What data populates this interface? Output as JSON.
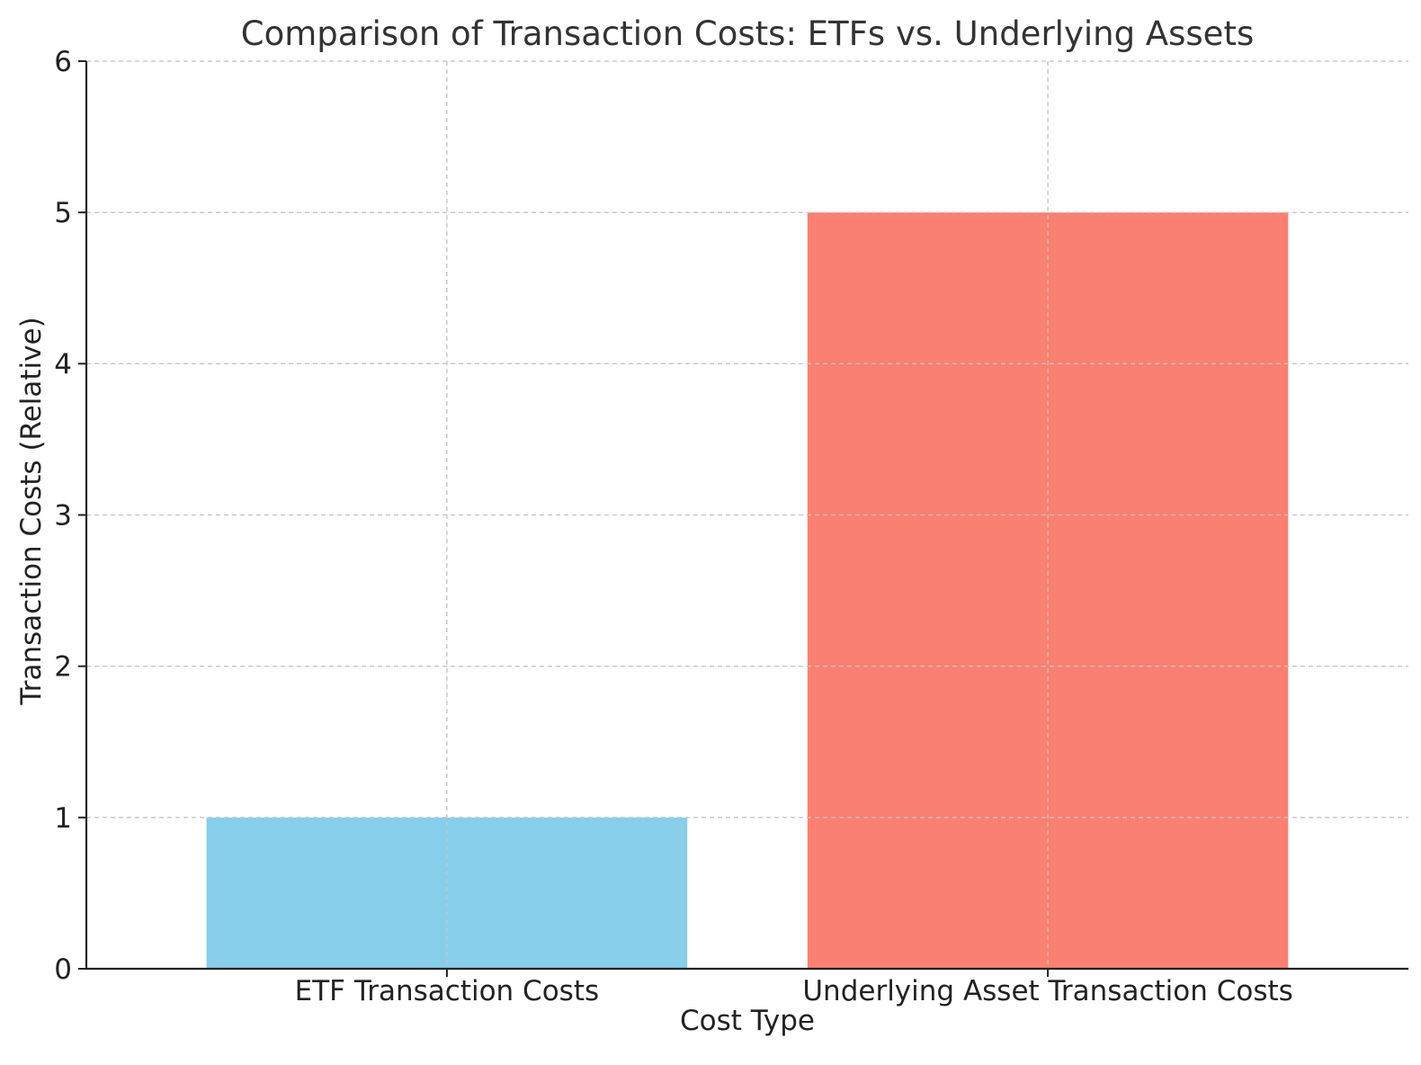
{
  "chart_data": {
    "type": "bar",
    "title": "Comparison of Transaction Costs: ETFs vs. Underlying Assets",
    "xlabel": "Cost Type",
    "ylabel": "Transaction Costs (Relative)",
    "categories": [
      "ETF Transaction Costs",
      "Underlying Asset Transaction Costs"
    ],
    "values": [
      1,
      5
    ],
    "colors": [
      "#87ceeb",
      "#fa8072"
    ],
    "ylim": [
      0,
      6
    ],
    "yticks": [
      0,
      1,
      2,
      3,
      4,
      5,
      6
    ],
    "grid": true,
    "grid_style": "dashed",
    "legend": "none"
  }
}
